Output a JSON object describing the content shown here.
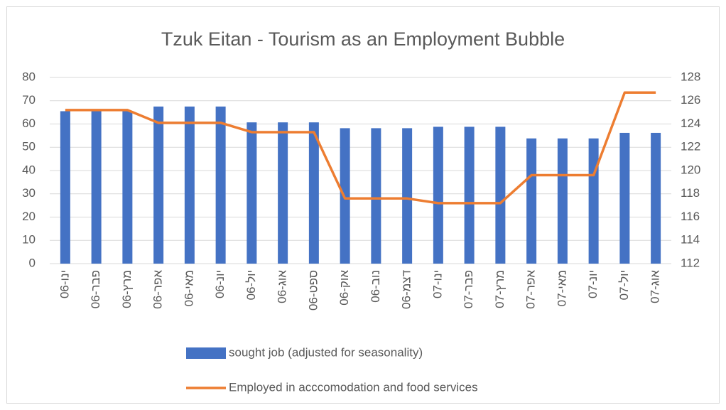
{
  "chart_data": {
    "type": "bar",
    "title": "Tzuk Eitan - Tourism as an Employment Bubble",
    "categories": [
      "ינו-06",
      "פבר-06",
      "מרץ-06",
      "אפר-06",
      "מאי-06",
      "יונ-06",
      "יול-06",
      "אוג-06",
      "ספט-06",
      "אוק-06",
      "נוב-06",
      "דצמ-06",
      "ינו-07",
      "פבר-07",
      "מרץ-07",
      "אפר-07",
      "מאי-07",
      "יונ-07",
      "יול-07",
      "אוג-07"
    ],
    "series": [
      {
        "name": "sought job (adjusted for seasonality)",
        "type": "bar",
        "color": "#4472c4",
        "values": [
          65.5,
          65.5,
          65.5,
          67.5,
          67.5,
          67.5,
          60.7,
          60.7,
          60.7,
          58.2,
          58.2,
          58.2,
          58.8,
          58.8,
          58.8,
          53.8,
          53.8,
          53.8,
          56.2,
          56.2
        ]
      },
      {
        "name": "Employed in acccomodation and food services",
        "type": "line",
        "axis": "y2",
        "color": "#ed7d31",
        "values": [
          125.2,
          125.2,
          125.2,
          124.1,
          124.1,
          124.1,
          123.3,
          123.3,
          123.3,
          117.6,
          117.6,
          117.6,
          117.2,
          117.2,
          117.2,
          119.6,
          119.6,
          119.6,
          126.7,
          126.7
        ]
      }
    ],
    "ylim": [
      0,
      80
    ],
    "yticks": [
      0,
      10,
      20,
      30,
      40,
      50,
      60,
      70,
      80
    ],
    "y2lim": [
      112,
      128
    ],
    "y2ticks": [
      112,
      114,
      116,
      118,
      120,
      122,
      124,
      126,
      128
    ],
    "grid": true
  }
}
